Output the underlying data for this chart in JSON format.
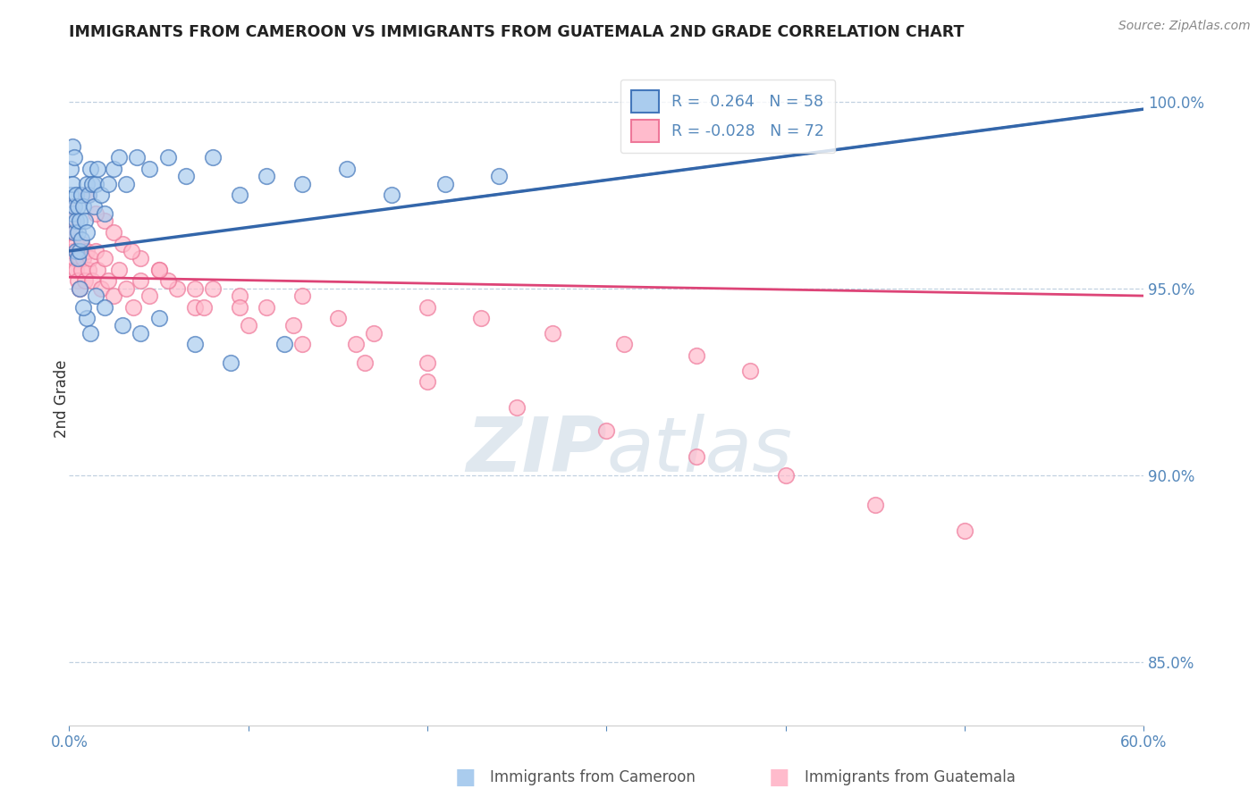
{
  "title": "IMMIGRANTS FROM CAMEROON VS IMMIGRANTS FROM GUATEMALA 2ND GRADE CORRELATION CHART",
  "source": "Source: ZipAtlas.com",
  "ylabel": "2nd Grade",
  "xlim": [
    0.0,
    0.6
  ],
  "ylim": [
    0.833,
    1.008
  ],
  "xticks": [
    0.0,
    0.1,
    0.2,
    0.3,
    0.4,
    0.5,
    0.6
  ],
  "xticklabels": [
    "0.0%",
    "",
    "",
    "",
    "",
    "",
    "60.0%"
  ],
  "yticks_right": [
    0.85,
    0.9,
    0.95,
    1.0
  ],
  "yticklabels_right": [
    "85.0%",
    "90.0%",
    "95.0%",
    "100.0%"
  ],
  "cameroon_R": 0.264,
  "cameroon_N": 58,
  "guatemala_R": -0.028,
  "guatemala_N": 72,
  "blue_dot_face": "#AACCEE",
  "blue_dot_edge": "#4477BB",
  "pink_dot_face": "#FFBBCC",
  "pink_dot_edge": "#EE7799",
  "trend_blue_color": "#3366AA",
  "trend_pink_color": "#DD4477",
  "grid_color": "#BBCCDD",
  "label_color": "#5588BB",
  "watermark_color": "#BBCCDD",
  "cameroon_x": [
    0.001,
    0.001,
    0.002,
    0.002,
    0.002,
    0.003,
    0.003,
    0.003,
    0.004,
    0.004,
    0.004,
    0.005,
    0.005,
    0.005,
    0.006,
    0.006,
    0.007,
    0.007,
    0.008,
    0.009,
    0.01,
    0.01,
    0.011,
    0.012,
    0.013,
    0.014,
    0.015,
    0.016,
    0.018,
    0.02,
    0.022,
    0.025,
    0.028,
    0.032,
    0.038,
    0.045,
    0.055,
    0.065,
    0.08,
    0.095,
    0.11,
    0.13,
    0.155,
    0.18,
    0.21,
    0.24,
    0.01,
    0.012,
    0.008,
    0.006,
    0.015,
    0.02,
    0.03,
    0.04,
    0.05,
    0.07,
    0.09,
    0.12
  ],
  "cameroon_y": [
    0.982,
    0.975,
    0.988,
    0.978,
    0.97,
    0.985,
    0.972,
    0.965,
    0.975,
    0.968,
    0.96,
    0.972,
    0.965,
    0.958,
    0.968,
    0.96,
    0.975,
    0.963,
    0.972,
    0.968,
    0.978,
    0.965,
    0.975,
    0.982,
    0.978,
    0.972,
    0.978,
    0.982,
    0.975,
    0.97,
    0.978,
    0.982,
    0.985,
    0.978,
    0.985,
    0.982,
    0.985,
    0.98,
    0.985,
    0.975,
    0.98,
    0.978,
    0.982,
    0.975,
    0.978,
    0.98,
    0.942,
    0.938,
    0.945,
    0.95,
    0.948,
    0.945,
    0.94,
    0.938,
    0.942,
    0.935,
    0.93,
    0.935
  ],
  "guatemala_x": [
    0.001,
    0.001,
    0.002,
    0.002,
    0.002,
    0.003,
    0.003,
    0.004,
    0.004,
    0.005,
    0.005,
    0.006,
    0.006,
    0.007,
    0.007,
    0.008,
    0.009,
    0.01,
    0.011,
    0.012,
    0.013,
    0.015,
    0.016,
    0.018,
    0.02,
    0.022,
    0.025,
    0.028,
    0.032,
    0.036,
    0.04,
    0.045,
    0.05,
    0.06,
    0.07,
    0.08,
    0.095,
    0.11,
    0.13,
    0.15,
    0.17,
    0.2,
    0.23,
    0.27,
    0.31,
    0.35,
    0.38,
    0.02,
    0.03,
    0.04,
    0.055,
    0.075,
    0.1,
    0.13,
    0.165,
    0.2,
    0.25,
    0.3,
    0.35,
    0.4,
    0.45,
    0.5,
    0.01,
    0.015,
    0.025,
    0.035,
    0.05,
    0.07,
    0.095,
    0.125,
    0.16,
    0.2
  ],
  "guatemala_y": [
    0.972,
    0.965,
    0.968,
    0.96,
    0.955,
    0.965,
    0.958,
    0.962,
    0.955,
    0.96,
    0.952,
    0.958,
    0.95,
    0.962,
    0.955,
    0.958,
    0.952,
    0.96,
    0.955,
    0.958,
    0.952,
    0.96,
    0.955,
    0.95,
    0.958,
    0.952,
    0.948,
    0.955,
    0.95,
    0.945,
    0.952,
    0.948,
    0.955,
    0.95,
    0.945,
    0.95,
    0.948,
    0.945,
    0.948,
    0.942,
    0.938,
    0.945,
    0.942,
    0.938,
    0.935,
    0.932,
    0.928,
    0.968,
    0.962,
    0.958,
    0.952,
    0.945,
    0.94,
    0.935,
    0.93,
    0.925,
    0.918,
    0.912,
    0.905,
    0.9,
    0.892,
    0.885,
    0.975,
    0.97,
    0.965,
    0.96,
    0.955,
    0.95,
    0.945,
    0.94,
    0.935,
    0.93
  ],
  "cam_trend_x0": 0.0,
  "cam_trend_y0": 0.96,
  "cam_trend_x1": 0.6,
  "cam_trend_y1": 0.998,
  "guat_trend_x0": 0.0,
  "guat_trend_y0": 0.953,
  "guat_trend_x1": 0.6,
  "guat_trend_y1": 0.948
}
